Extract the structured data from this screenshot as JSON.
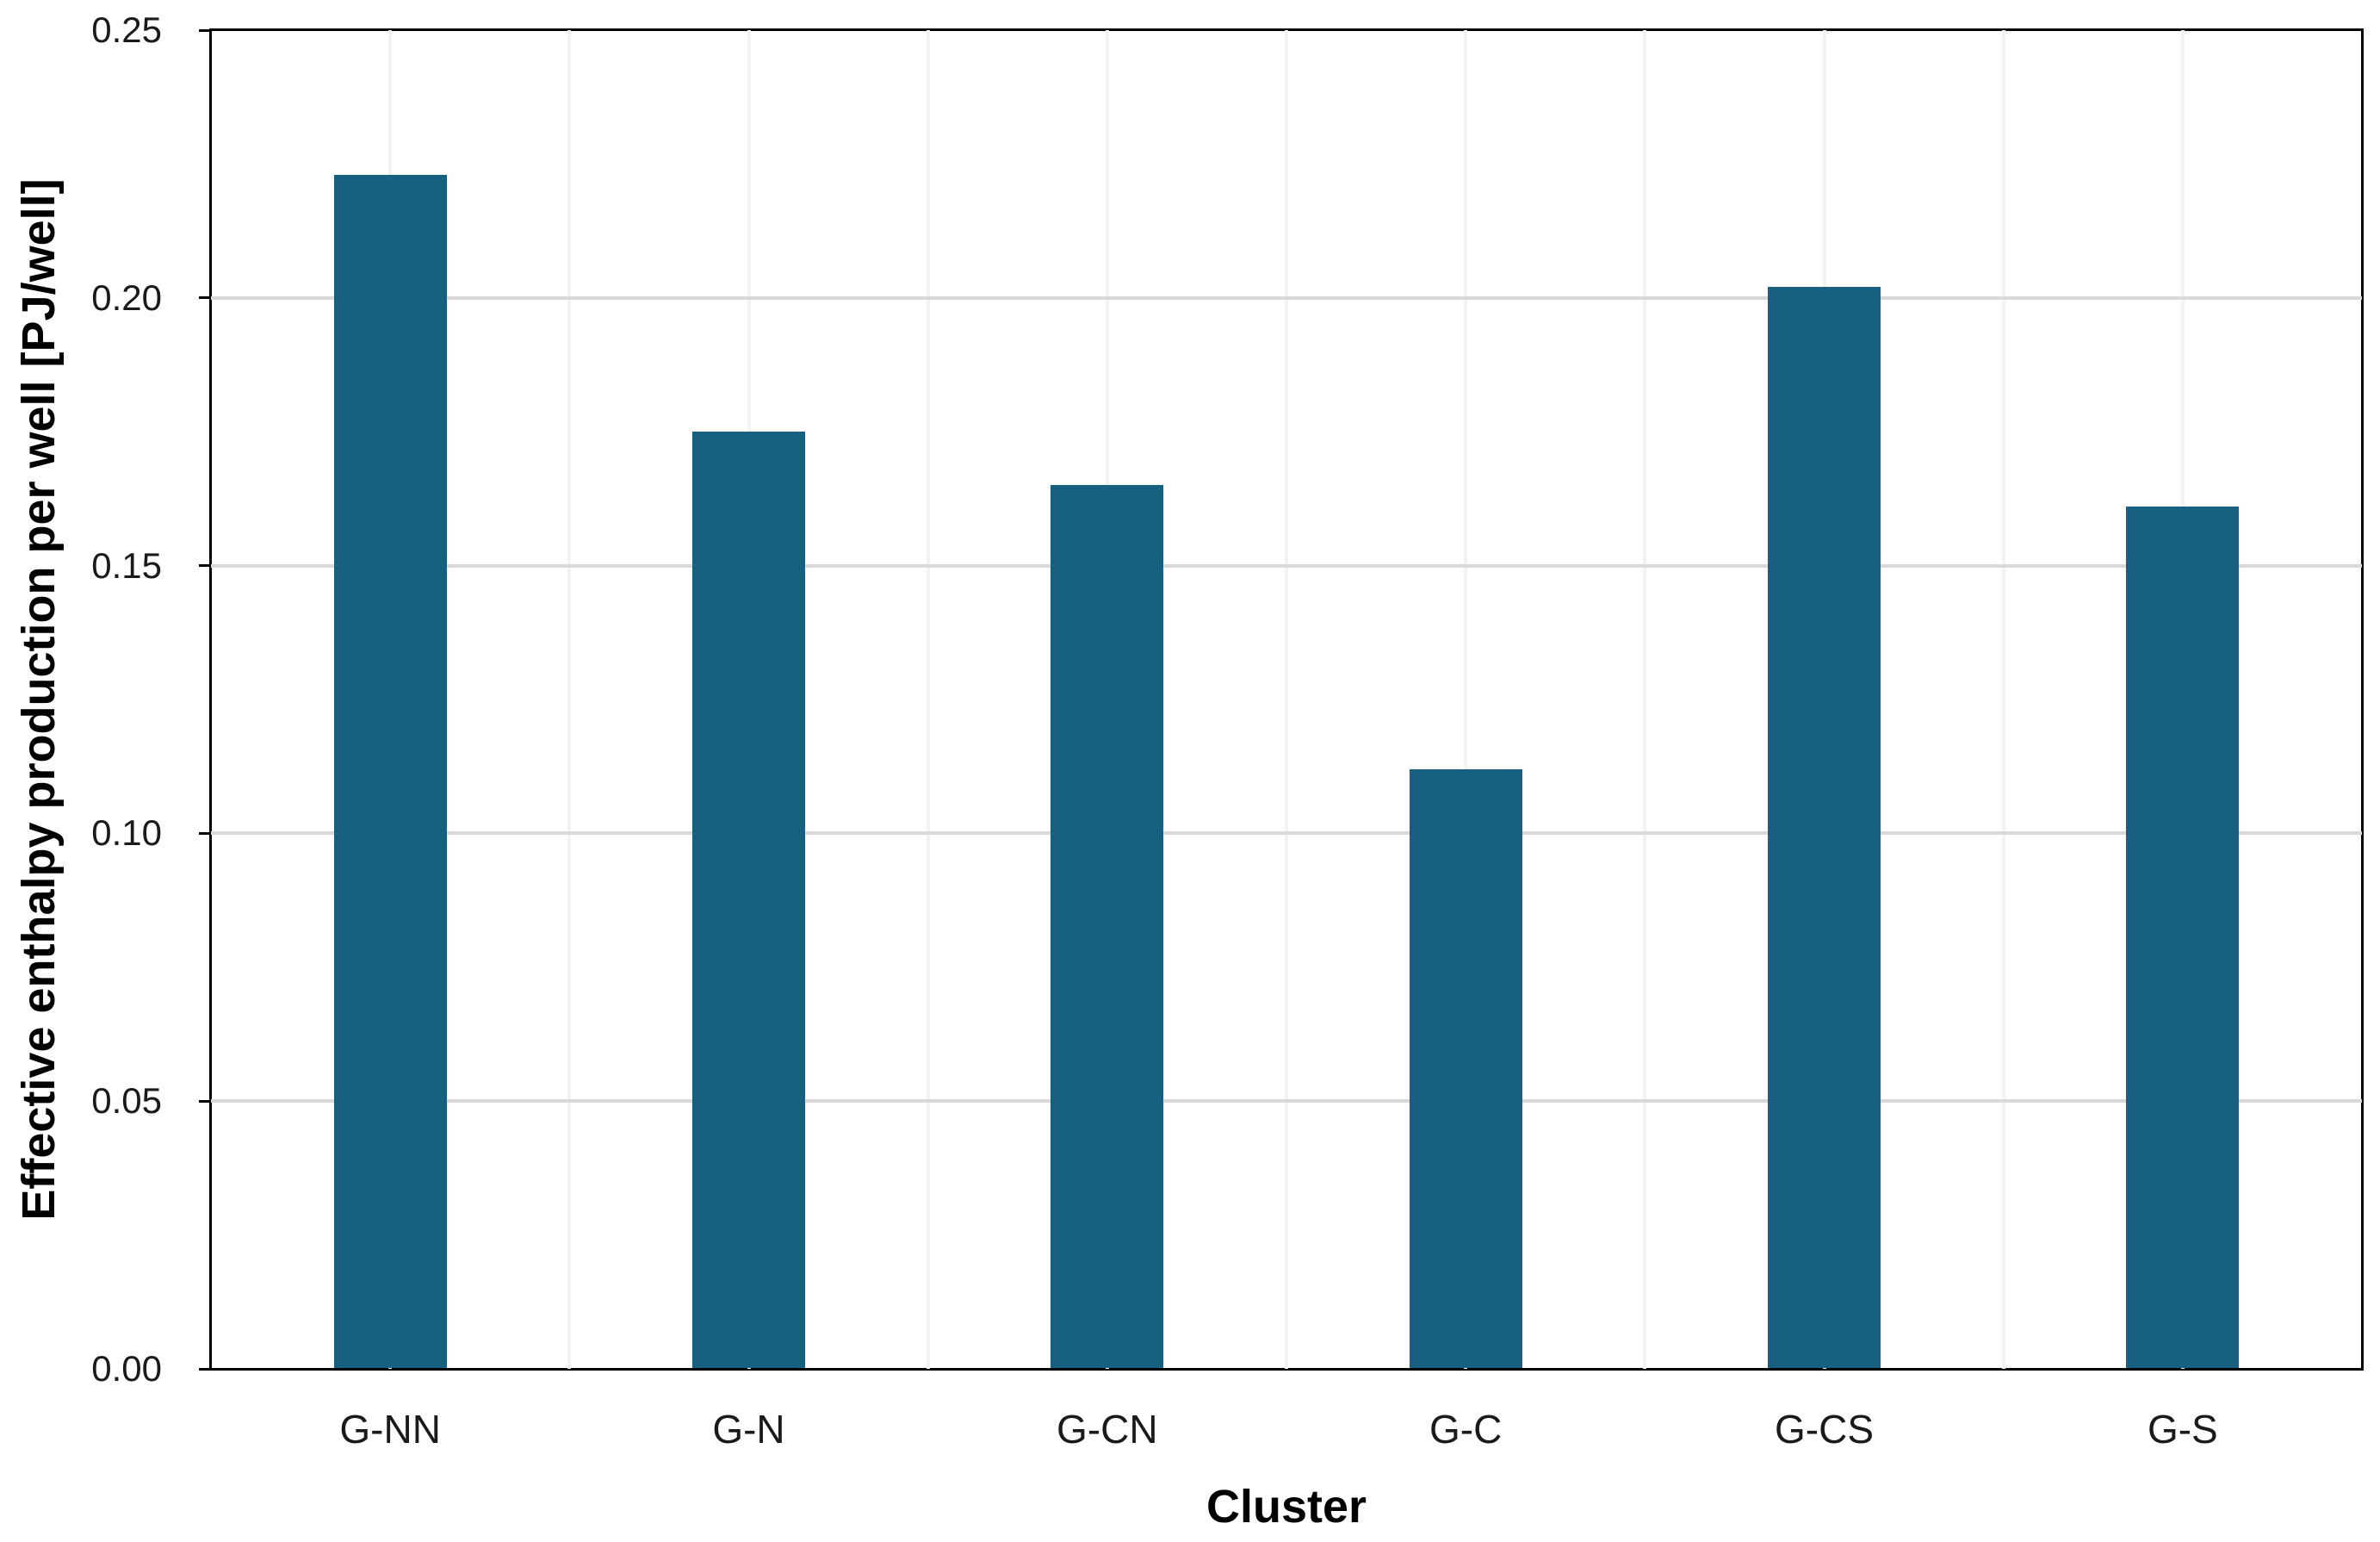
{
  "chart_data": {
    "type": "bar",
    "title": "",
    "xlabel": "Cluster",
    "ylabel": "Effective enthalpy production per well [PJ/well]",
    "categories": [
      "G-NN",
      "G-N",
      "G-CN",
      "G-C",
      "G-CS",
      "G-S"
    ],
    "values": [
      0.223,
      0.175,
      0.165,
      0.112,
      0.202,
      0.161
    ],
    "ylim": [
      0,
      0.25
    ],
    "yticks": [
      0,
      0.05,
      0.1,
      0.15,
      0.2,
      0.25
    ],
    "ytick_labels": [
      "0.00",
      "0.05",
      "0.10",
      "0.15",
      "0.20",
      "0.25"
    ],
    "bar_color": "#18607F",
    "frame_color": "#000000",
    "grid": {
      "horizontal": true,
      "vertical": true,
      "h_color": "#d9d9d9",
      "v_color": "#f2f2f2"
    },
    "legend": "none"
  }
}
